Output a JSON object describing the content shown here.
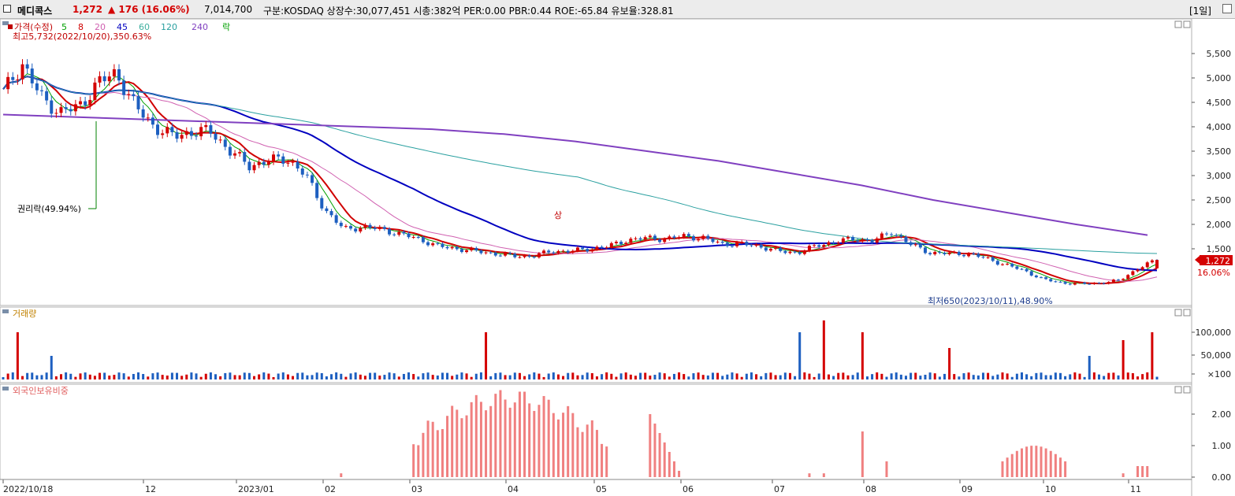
{
  "header": {
    "name": "메디콕스",
    "price": "1,272",
    "change": "▲ 176 (16.06%)",
    "volume": "7,014,700",
    "stats": "구분:KOSDAQ 상장수:30,077,451 시총:382억 PER:0.00 PBR:0.44 ROE:-65.84 유보율:328.81",
    "period": "[1일]"
  },
  "price_panel": {
    "legend": [
      {
        "label": "가격(수정)",
        "color": "#c00000"
      },
      {
        "label": "5",
        "color": "#00a000"
      },
      {
        "label": "8",
        "color": "#d00000"
      },
      {
        "label": "20",
        "color": "#d060b0"
      },
      {
        "label": "45",
        "color": "#0000c0"
      },
      {
        "label": "60",
        "color": "#40b0a0"
      },
      {
        "label": "120",
        "color": "#2aa0a0"
      },
      {
        "label": "240",
        "color": "#8040c0"
      },
      {
        "label": "락",
        "color": "#00a000"
      }
    ],
    "high_note": "최고5,732(2022/10/20),350.63%",
    "low_note": "최저650(2023/10/11),48.90%",
    "rights_note": "권리락(49.94%)",
    "limit_up_mark": "상",
    "current_price": "1,272",
    "current_change": "16.06%",
    "y_ticks": [
      "5,500",
      "5,000",
      "4,500",
      "4,000",
      "3,500",
      "3,000",
      "2,500",
      "2,000",
      "1,500"
    ]
  },
  "volume_panel": {
    "title": "거래량",
    "y_ticks": [
      "100,000",
      "50,000",
      "×100"
    ]
  },
  "foreign_panel": {
    "title": "외국인보유비중",
    "y_ticks": [
      "2.00",
      "1.00",
      "0.00"
    ]
  },
  "x_axis_labels": [
    "2022/10/18",
    "12",
    "2023/01",
    "02",
    "03",
    "04",
    "05",
    "06",
    "07",
    "08",
    "09",
    "10",
    "11"
  ],
  "chart_data": {
    "type": "candlestick",
    "price_series_approx": [
      4700,
      5300,
      4600,
      4300,
      4400,
      4900,
      5100,
      4400,
      4000,
      3800,
      3900,
      3900,
      3500,
      3200,
      3300,
      3350,
      3000,
      2300,
      1900,
      1950,
      1900,
      1800,
      1700,
      1550,
      1500,
      1450,
      1400,
      1350,
      1350,
      1450,
      1450,
      1500,
      1550,
      1680,
      1720,
      1700,
      1760,
      1720,
      1600,
      1600,
      1550,
      1450,
      1420,
      1560,
      1650,
      1700,
      1660,
      1850,
      1580,
      1420,
      1400,
      1400,
      1300,
      1170,
      1050,
      870,
      800,
      780,
      800,
      850,
      1100,
      1272
    ],
    "ma240_approx": [
      4250,
      4200,
      4150,
      4100,
      4050,
      4000,
      3950,
      3850,
      3700,
      3500,
      3300,
      3050,
      2800,
      2500,
      2250,
      2000,
      1780
    ],
    "volume_peak_labels": [
      "100,000",
      "50,000"
    ],
    "foreign_ratio_range": [
      0,
      2.7
    ]
  },
  "colors": {
    "up": "#d40000",
    "down": "#1d5fc0",
    "ma5": "#00a000",
    "ma8": "#d00000",
    "ma20": "#d060b0",
    "ma45": "#0000c0",
    "ma120": "#2aa0a0",
    "ma240": "#8040c0",
    "foreign": "#f08080"
  }
}
